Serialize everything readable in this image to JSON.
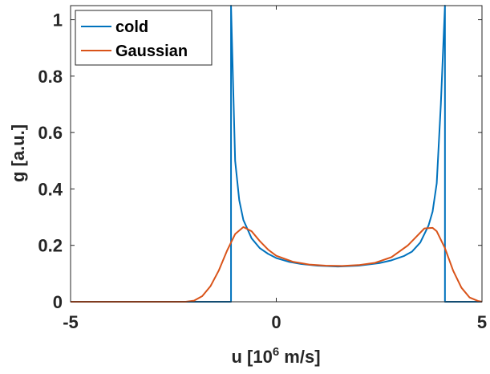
{
  "chart_data": {
    "type": "line",
    "xlabel": "u [10",
    "xlabel_sup": "6",
    "xlabel_rest": " m/s]",
    "ylabel": "g [a.u.]",
    "xlim": [
      -5,
      5
    ],
    "ylim": [
      0,
      1.05
    ],
    "xticks": [
      -5,
      0,
      5
    ],
    "xtick_labels": [
      "-5",
      "0",
      "5"
    ],
    "yticks": [
      0,
      0.2,
      0.4,
      0.6,
      0.8,
      1
    ],
    "ytick_labels": [
      "0",
      "0.2",
      "0.4",
      "0.6",
      "0.8",
      "1"
    ],
    "grid": false,
    "legend_position": "top-left",
    "series": [
      {
        "name": "cold",
        "color": "#0072BD",
        "x": [
          -5,
          -1.1,
          -1.1,
          -1.0,
          -0.9,
          -0.8,
          -0.6,
          -0.4,
          -0.2,
          0,
          0.3,
          0.6,
          1.0,
          1.5,
          2.0,
          2.5,
          2.8,
          3.1,
          3.3,
          3.5,
          3.7,
          3.8,
          3.9,
          4.0,
          4.1,
          4.1,
          5
        ],
        "y": [
          0,
          0,
          1.05,
          0.5,
          0.36,
          0.29,
          0.225,
          0.19,
          0.17,
          0.155,
          0.142,
          0.134,
          0.128,
          0.125,
          0.128,
          0.137,
          0.147,
          0.162,
          0.178,
          0.21,
          0.27,
          0.32,
          0.42,
          0.7,
          1.05,
          0,
          0
        ]
      },
      {
        "name": "Gaussian",
        "color": "#D95319",
        "x": [
          -5,
          -2.2,
          -2.0,
          -1.8,
          -1.6,
          -1.4,
          -1.2,
          -1.0,
          -0.8,
          -0.6,
          -0.4,
          -0.2,
          0,
          0.4,
          0.8,
          1.2,
          1.6,
          2.0,
          2.4,
          2.8,
          3.2,
          3.4,
          3.6,
          3.8,
          3.9,
          4.1,
          4.3,
          4.5,
          4.7,
          4.9,
          5
        ],
        "y": [
          0,
          0.0,
          0.004,
          0.02,
          0.055,
          0.11,
          0.18,
          0.24,
          0.265,
          0.25,
          0.215,
          0.185,
          0.163,
          0.142,
          0.132,
          0.128,
          0.127,
          0.13,
          0.138,
          0.158,
          0.2,
          0.23,
          0.26,
          0.262,
          0.25,
          0.19,
          0.11,
          0.05,
          0.015,
          0.003,
          0
        ]
      }
    ]
  }
}
